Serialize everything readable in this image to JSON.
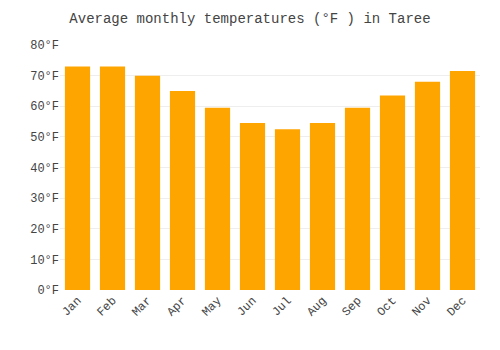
{
  "chart_data": {
    "type": "bar",
    "title": "Average monthly temperatures (°F ) in Taree",
    "categories": [
      "Jan",
      "Feb",
      "Mar",
      "Apr",
      "May",
      "Jun",
      "Jul",
      "Aug",
      "Sep",
      "Oct",
      "Nov",
      "Dec"
    ],
    "values": [
      73,
      73,
      70,
      65,
      59.5,
      54.5,
      52.5,
      54.5,
      59.5,
      63.5,
      68,
      71.5
    ],
    "color": "#FFA500",
    "ylim": [
      0,
      80
    ],
    "yticks": [
      {
        "value": 0,
        "label": "0°F"
      },
      {
        "value": 10,
        "label": "10°F"
      },
      {
        "value": 20,
        "label": "20°F"
      },
      {
        "value": 30,
        "label": "30°F"
      },
      {
        "value": 40,
        "label": "40°F"
      },
      {
        "value": 50,
        "label": "50°F"
      },
      {
        "value": 60,
        "label": "60°F"
      },
      {
        "value": 70,
        "label": "70°F"
      },
      {
        "value": 80,
        "label": "80°F"
      }
    ],
    "grid": true
  }
}
